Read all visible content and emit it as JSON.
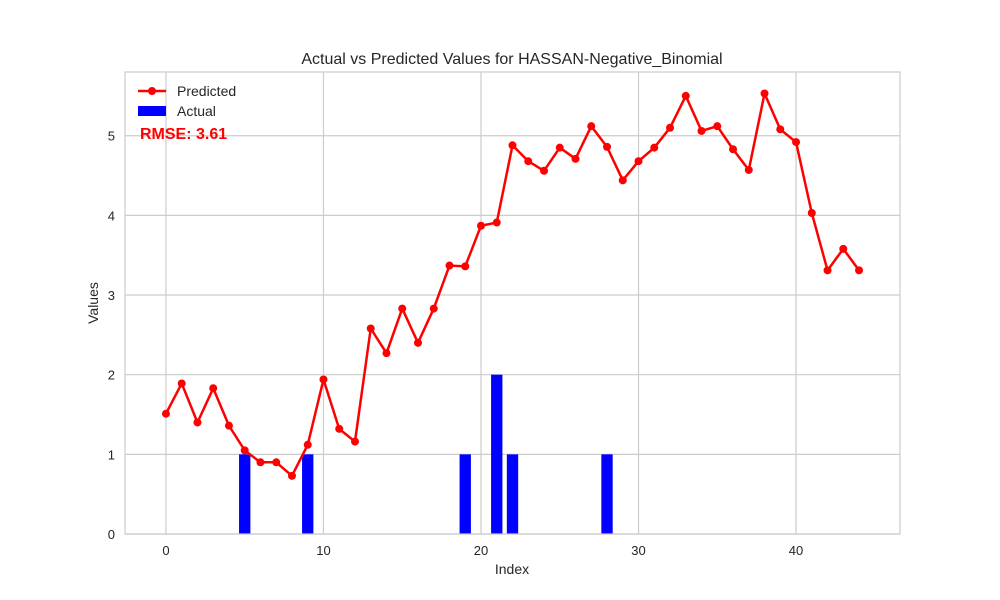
{
  "chart_data": {
    "type": "line",
    "title": "Actual vs Predicted Values for HASSAN-Negative_Binomial",
    "xlabel": "Index",
    "ylabel": "Values",
    "xlim": [
      -2.6,
      46.6
    ],
    "ylim": [
      0,
      5.8
    ],
    "x_ticks": [
      0,
      10,
      20,
      30,
      40
    ],
    "y_ticks": [
      0,
      1,
      2,
      3,
      4,
      5
    ],
    "grid": true,
    "legend_position": "top-left",
    "annotation": "RMSE: 3.61",
    "series": [
      {
        "name": "Predicted",
        "kind": "line",
        "color": "#ff0000",
        "x": [
          0,
          1,
          2,
          3,
          4,
          5,
          6,
          7,
          8,
          9,
          10,
          11,
          12,
          13,
          14,
          15,
          16,
          17,
          18,
          19,
          20,
          21,
          22,
          23,
          24,
          25,
          26,
          27,
          28,
          29,
          30,
          31,
          32,
          33,
          34,
          35,
          36,
          37,
          38,
          39,
          40,
          41,
          42,
          43,
          44
        ],
        "values": [
          1.51,
          1.89,
          1.4,
          1.83,
          1.36,
          1.05,
          0.9,
          0.9,
          0.73,
          1.12,
          1.94,
          1.32,
          1.16,
          2.58,
          2.27,
          2.83,
          2.4,
          2.83,
          3.37,
          3.36,
          3.87,
          3.91,
          4.88,
          4.68,
          4.56,
          4.85,
          4.71,
          5.12,
          4.86,
          4.44,
          4.68,
          4.85,
          5.1,
          5.5,
          5.06,
          5.12,
          4.83,
          4.57,
          5.53,
          5.08,
          4.92,
          4.03,
          3.31,
          3.58,
          3.31
        ]
      },
      {
        "name": "Actual",
        "kind": "bar",
        "color": "#0000ff",
        "x": [
          0,
          1,
          2,
          3,
          4,
          5,
          6,
          7,
          8,
          9,
          10,
          11,
          12,
          13,
          14,
          15,
          16,
          17,
          18,
          19,
          20,
          21,
          22,
          23,
          24,
          25,
          26,
          27,
          28,
          29,
          30,
          31,
          32,
          33,
          34,
          35,
          36,
          37,
          38,
          39,
          40,
          41,
          42,
          43,
          44
        ],
        "values": [
          0,
          0,
          0,
          0,
          0,
          1,
          0,
          0,
          0,
          1,
          0,
          0,
          0,
          0,
          0,
          0,
          0,
          0,
          0,
          1,
          0,
          2,
          1,
          0,
          0,
          0,
          0,
          0,
          1,
          0,
          0,
          0,
          0,
          0,
          0,
          0,
          0,
          0,
          0,
          0,
          0,
          0,
          0,
          0,
          0
        ]
      }
    ]
  }
}
